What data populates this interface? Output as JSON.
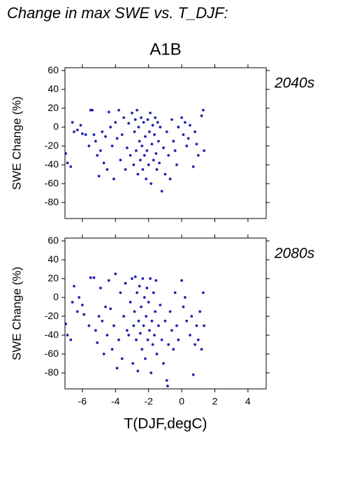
{
  "title": "Change in max SWE vs. T_DJF:",
  "scenario": "A1B",
  "xlabel": "T(DJF,degC)",
  "chart_data": [
    {
      "type": "scatter",
      "label": "2040s",
      "ylabel": "SWE Change (%)",
      "color": "#2020b0",
      "xlim": [
        -7.05,
        5.1
      ],
      "ylim": [
        -97,
        63
      ],
      "xticks": [
        -6,
        -4,
        -2,
        0,
        2,
        4
      ],
      "yticks": [
        60,
        40,
        20,
        0,
        -20,
        -40,
        -60,
        -80
      ],
      "x": [
        -7,
        -6.9,
        -6.7,
        -6.6,
        -6.5,
        -6.3,
        -6.1,
        -6,
        -5.8,
        -5.6,
        -5.5,
        -5.4,
        -5.3,
        -5.2,
        -5.1,
        -5,
        -4.9,
        -4.8,
        -4.7,
        -4.6,
        -4.5,
        -4.4,
        -4.3,
        -4.2,
        -4.1,
        -4,
        -3.9,
        -3.8,
        -3.7,
        -3.6,
        -3.5,
        -3.4,
        -3.3,
        -3.2,
        -3.1,
        -3,
        -2.9,
        -2.85,
        -2.8,
        -2.75,
        -2.7,
        -2.65,
        -2.6,
        -2.55,
        -2.5,
        -2.45,
        -2.4,
        -2.35,
        -2.3,
        -2.25,
        -2.2,
        -2.15,
        -2.1,
        -2.05,
        -2,
        -1.95,
        -1.9,
        -1.85,
        -1.8,
        -1.75,
        -1.7,
        -1.65,
        -1.6,
        -1.55,
        -1.5,
        -1.45,
        -1.4,
        -1.35,
        -1.3,
        -1.2,
        -1.1,
        -1,
        -0.9,
        -0.8,
        -0.7,
        -0.6,
        -0.5,
        -0.4,
        -0.3,
        -0.2,
        0,
        0.1,
        0.2,
        0.3,
        0.4,
        0.5,
        0.7,
        0.8,
        0.9,
        1,
        1.2,
        1.3,
        1.35
      ],
      "y": [
        -28,
        -38,
        -42,
        5,
        -5,
        -3,
        2,
        -7,
        -8,
        -20,
        18,
        18,
        -8,
        -15,
        -30,
        -52,
        -25,
        -5,
        -38,
        -10,
        -45,
        16,
        0,
        -20,
        -55,
        5,
        -12,
        18,
        -35,
        -8,
        10,
        -45,
        -22,
        4,
        -30,
        15,
        -40,
        -5,
        8,
        -25,
        18,
        -50,
        0,
        -15,
        -35,
        10,
        -20,
        -45,
        5,
        -30,
        -10,
        -55,
        -25,
        8,
        -40,
        -5,
        15,
        -60,
        -18,
        2,
        -35,
        -8,
        10,
        -28,
        -45,
        5,
        -15,
        -38,
        0,
        -68,
        -22,
        -50,
        -5,
        -30,
        -55,
        8,
        -15,
        -25,
        -40,
        0,
        10,
        -8,
        5,
        -20,
        -12,
        2,
        -42,
        -5,
        -18,
        -30,
        12,
        18,
        -25
      ]
    },
    {
      "type": "scatter",
      "label": "2080s",
      "ylabel": "SWE Change (%)",
      "color": "#2020b0",
      "xlim": [
        -7.05,
        5.1
      ],
      "ylim": [
        -97,
        63
      ],
      "xticks": [
        -6,
        -4,
        -2,
        0,
        2,
        4
      ],
      "yticks": [
        60,
        40,
        20,
        0,
        -20,
        -40,
        -60,
        -80
      ],
      "x": [
        -7,
        -6.9,
        -6.7,
        -6.6,
        -6.5,
        -6.3,
        -6.2,
        -6,
        -5.9,
        -5.6,
        -5.5,
        -5.3,
        -5.2,
        -5.1,
        -5,
        -4.9,
        -4.8,
        -4.7,
        -4.6,
        -4.5,
        -4.4,
        -4.3,
        -4.2,
        -4.1,
        -4,
        -3.9,
        -3.8,
        -3.7,
        -3.6,
        -3.5,
        -3.4,
        -3.3,
        -3.2,
        -3.1,
        -3,
        -2.95,
        -2.9,
        -2.85,
        -2.8,
        -2.75,
        -2.7,
        -2.65,
        -2.6,
        -2.55,
        -2.5,
        -2.45,
        -2.4,
        -2.35,
        -2.3,
        -2.25,
        -2.2,
        -2.15,
        -2.1,
        -2.05,
        -2,
        -1.95,
        -1.9,
        -1.85,
        -1.8,
        -1.75,
        -1.7,
        -1.65,
        -1.6,
        -1.55,
        -1.5,
        -1.4,
        -1.3,
        -1.2,
        -1.1,
        -1,
        -0.9,
        -0.85,
        -0.8,
        -0.7,
        -0.6,
        -0.5,
        -0.4,
        -0.3,
        -0.2,
        0,
        0.1,
        0.2,
        0.3,
        0.5,
        0.6,
        0.7,
        0.8,
        0.9,
        1,
        1.1,
        1.2,
        1.3,
        1.35
      ],
      "y": [
        -28,
        -40,
        -45,
        -5,
        12,
        -15,
        0,
        -8,
        -18,
        -30,
        21,
        21,
        -35,
        -48,
        -20,
        10,
        -25,
        -60,
        -10,
        -40,
        18,
        -12,
        -55,
        -30,
        25,
        -75,
        -45,
        5,
        -65,
        -20,
        15,
        -35,
        -40,
        -5,
        20,
        -70,
        -30,
        -15,
        22,
        -45,
        5,
        -78,
        -25,
        12,
        -38,
        -10,
        -55,
        20,
        -30,
        0,
        -65,
        -20,
        10,
        -45,
        -5,
        -35,
        20,
        -80,
        -25,
        -50,
        5,
        -40,
        -15,
        18,
        -60,
        -30,
        -8,
        -45,
        -70,
        -25,
        -88,
        -94,
        -50,
        -15,
        -35,
        -55,
        5,
        -30,
        -45,
        18,
        -10,
        0,
        -25,
        -40,
        -20,
        -82,
        -50,
        -30,
        -45,
        -15,
        -55,
        5,
        -30
      ]
    }
  ]
}
